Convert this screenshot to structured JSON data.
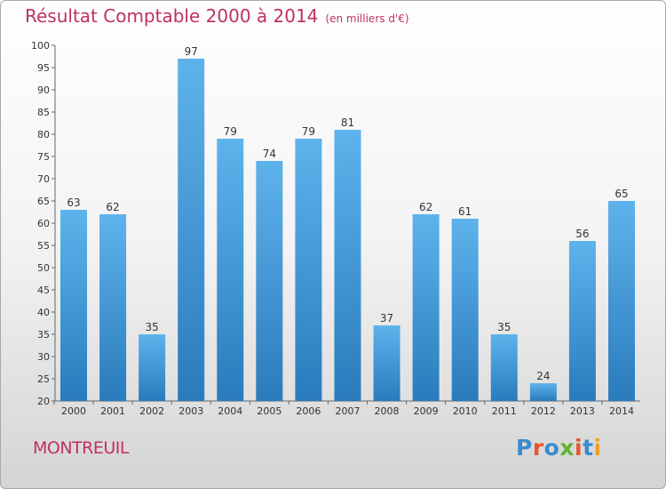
{
  "title": "Résultat Comptable 2000 à 2014",
  "unit_note": "(en milliers d'€)",
  "city": "MONTREUIL",
  "logo": "Proxiti",
  "colors": {
    "title": "#c0305f",
    "bar_light": "#5eb3ec",
    "bar_dark": "#2a7bbc",
    "logo_letters": [
      "#3a8bd0",
      "#e4572e",
      "#3a8bd0",
      "#62b22f",
      "#e4572e",
      "#3a8bd0",
      "#f0a020"
    ]
  },
  "chart_data": {
    "type": "bar",
    "categories": [
      "2000",
      "2001",
      "2002",
      "2003",
      "2004",
      "2005",
      "2006",
      "2007",
      "2008",
      "2009",
      "2010",
      "2011",
      "2012",
      "2013",
      "2014"
    ],
    "values": [
      63,
      62,
      35,
      97,
      79,
      74,
      79,
      81,
      37,
      62,
      61,
      35,
      24,
      56,
      65
    ],
    "ylim": [
      20,
      100
    ],
    "yticks": [
      20,
      25,
      30,
      35,
      40,
      45,
      50,
      55,
      60,
      65,
      70,
      75,
      80,
      85,
      90,
      95,
      100
    ],
    "grid": false,
    "data_labels": true,
    "title": "Résultat Comptable 2000 à 2014"
  }
}
